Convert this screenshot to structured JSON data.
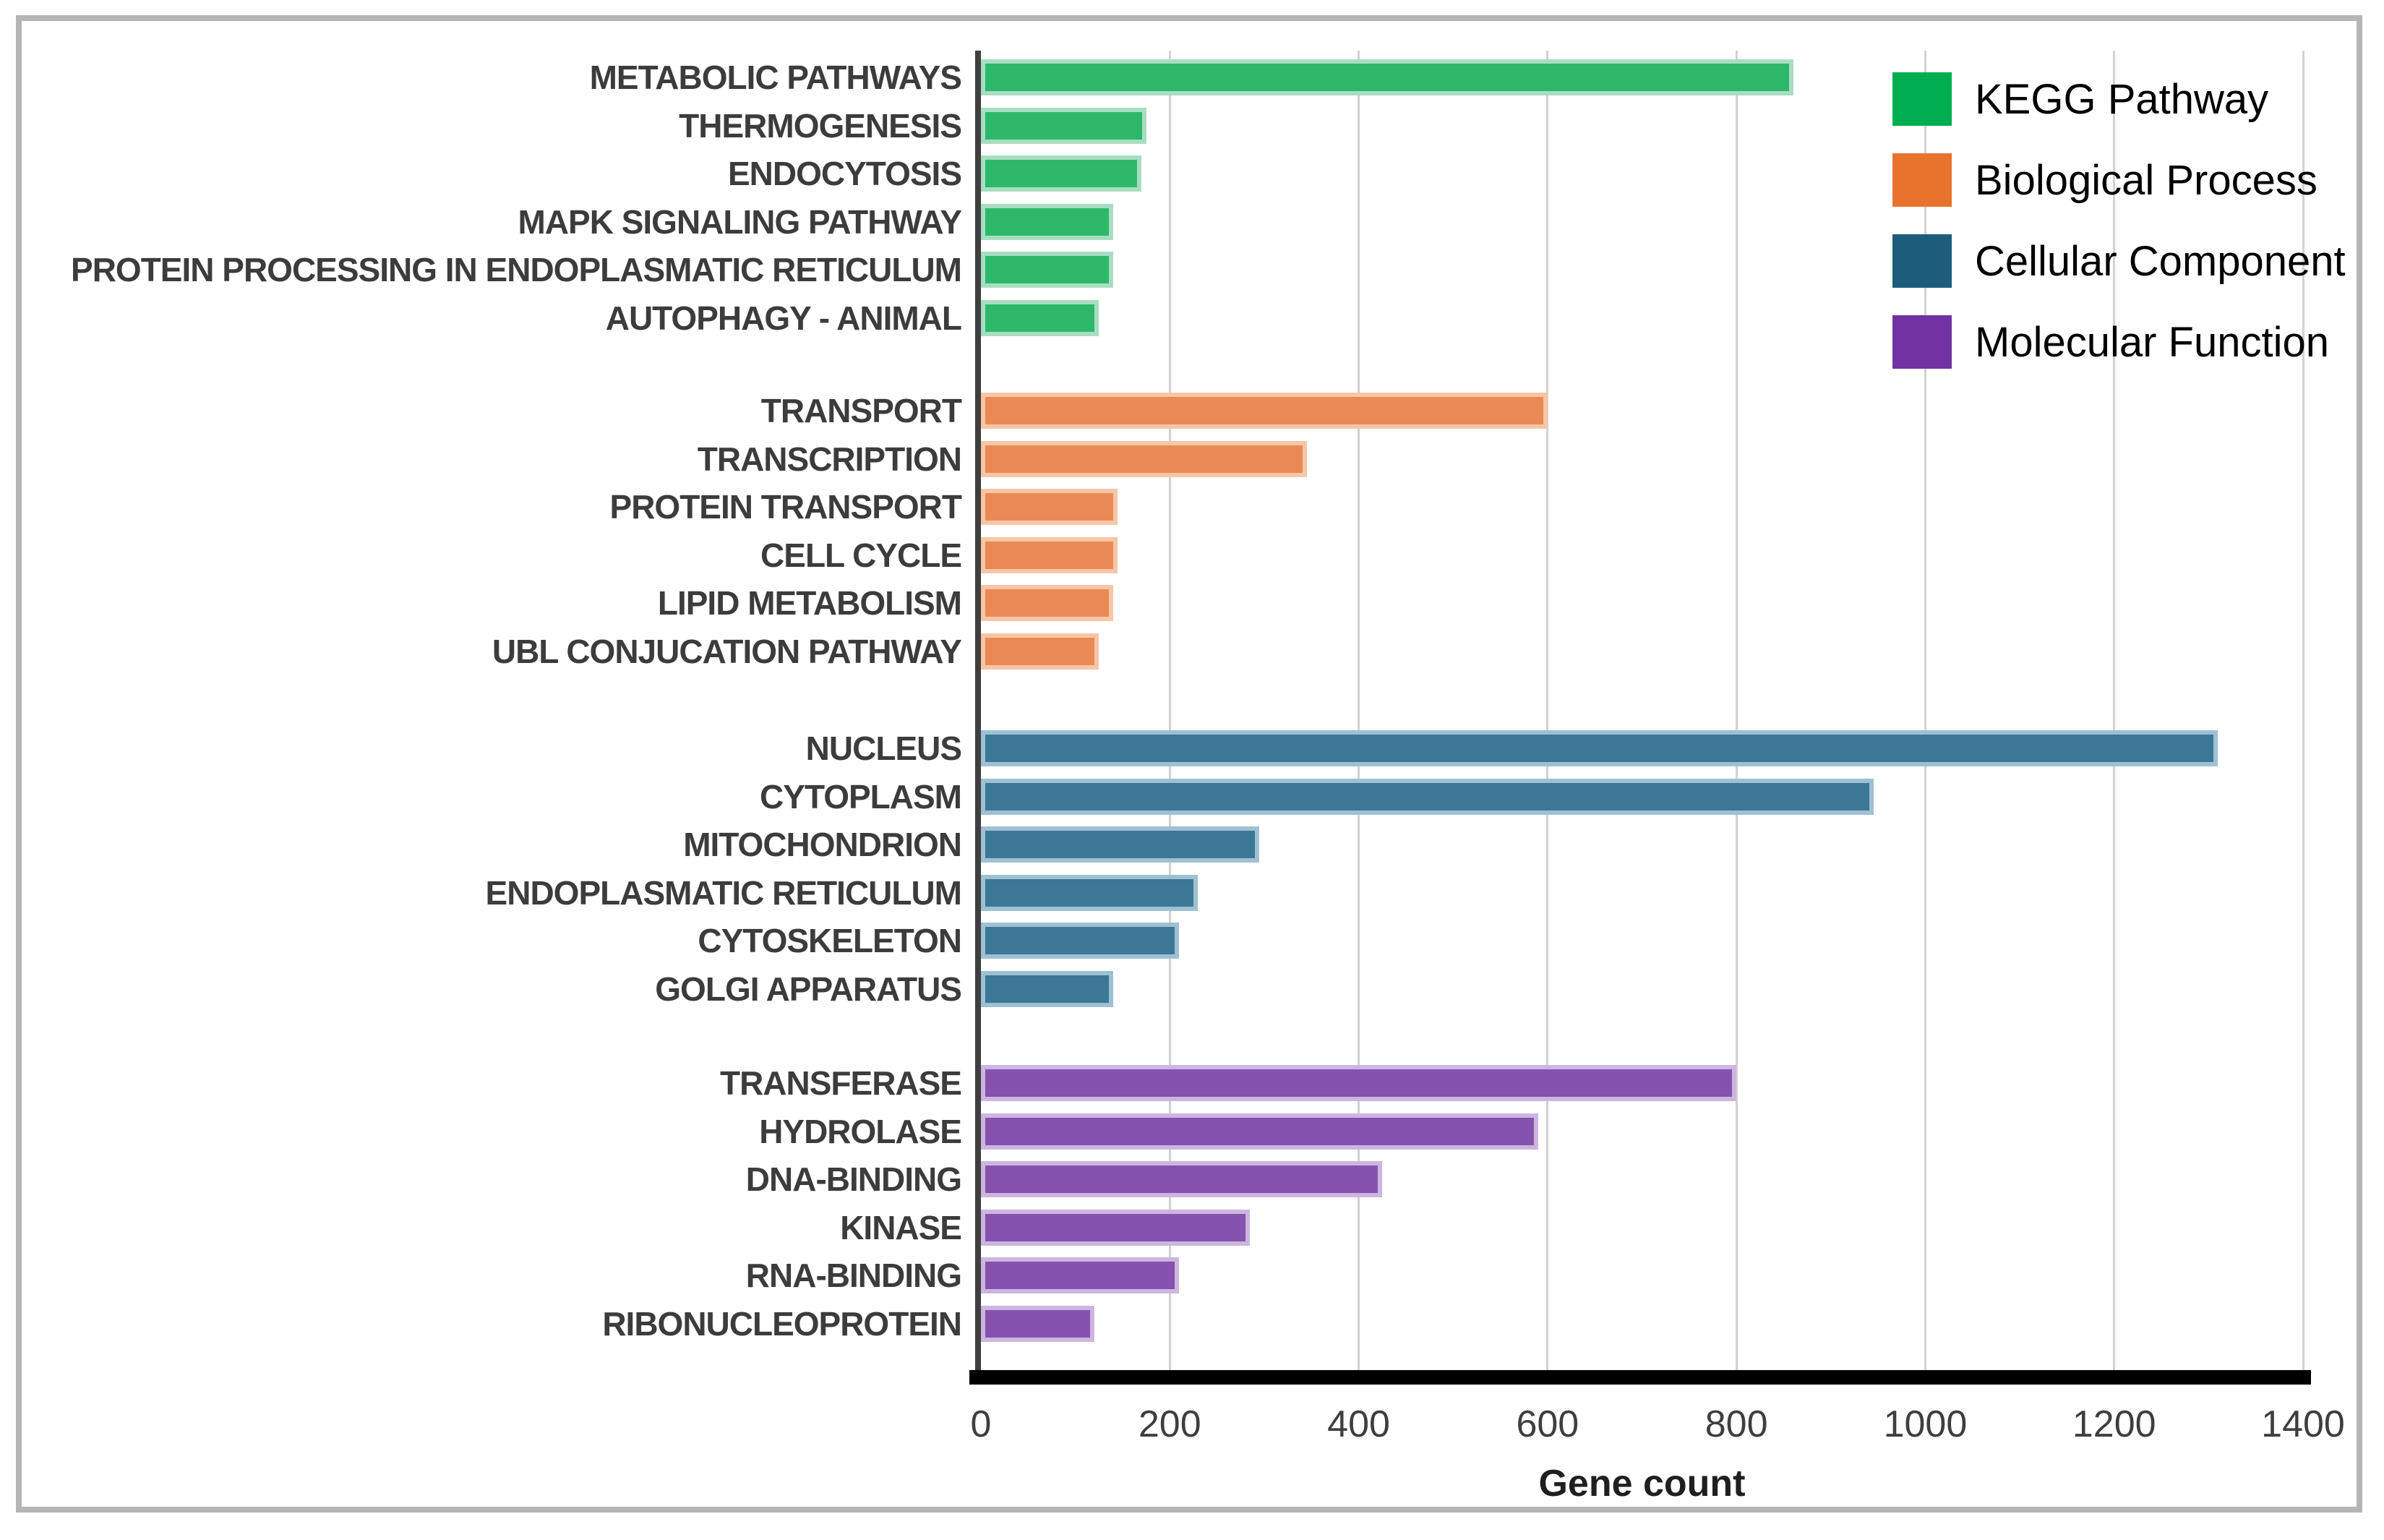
{
  "chart_data": {
    "type": "bar",
    "orientation": "horizontal",
    "title": "",
    "xlabel": "Gene count",
    "ylabel": "",
    "xlim": [
      0,
      1400
    ],
    "xticks": [
      0,
      200,
      400,
      600,
      800,
      1000,
      1200,
      1400
    ],
    "grid": "vertical",
    "legend_position": "top-right",
    "groups": [
      {
        "name": "KEGG Pathway",
        "bar_color": "#2db869",
        "bar_border_color": "#a9ddc1",
        "items": [
          {
            "label": "METABOLIC PATHWAYS",
            "value": 860
          },
          {
            "label": "THERMOGENESIS",
            "value": 175
          },
          {
            "label": "ENDOCYTOSIS",
            "value": 170
          },
          {
            "label": "MAPK SIGNALING PATHWAY",
            "value": 140
          },
          {
            "label": "PROTEIN PROCESSING IN ENDOPLASMATIC RETICULUM",
            "value": 140
          },
          {
            "label": "AUTOPHAGY - ANIMAL",
            "value": 125
          }
        ]
      },
      {
        "name": "Biological Process",
        "bar_color": "#e98a55",
        "bar_border_color": "#f6c6a7",
        "items": [
          {
            "label": "TRANSPORT",
            "value": 600
          },
          {
            "label": "TRANSCRIPTION",
            "value": 345
          },
          {
            "label": "PROTEIN TRANSPORT",
            "value": 145
          },
          {
            "label": "CELL CYCLE",
            "value": 145
          },
          {
            "label": "LIPID METABOLISM",
            "value": 140
          },
          {
            "label": "UBL CONJUCATION PATHWAY",
            "value": 125
          }
        ]
      },
      {
        "name": "Cellular Component",
        "bar_color": "#3a7896",
        "bar_border_color": "#9fc0d2",
        "items": [
          {
            "label": "NUCLEUS",
            "value": 1310
          },
          {
            "label": "CYTOPLASM",
            "value": 945
          },
          {
            "label": "MITOCHONDRION",
            "value": 295
          },
          {
            "label": "ENDOPLASMATIC RETICULUM",
            "value": 230
          },
          {
            "label": "CYTOSKELETON",
            "value": 210
          },
          {
            "label": "GOLGI APPARATUS",
            "value": 140
          }
        ]
      },
      {
        "name": "Molecular Function",
        "bar_color": "#8552ad",
        "bar_border_color": "#cdb5e0",
        "items": [
          {
            "label": "TRANSFERASE",
            "value": 800
          },
          {
            "label": "HYDROLASE",
            "value": 590
          },
          {
            "label": "DNA-BINDING",
            "value": 425
          },
          {
            "label": "KINASE",
            "value": 285
          },
          {
            "label": "RNA-BINDING",
            "value": 210
          },
          {
            "label": "RIBONUCLEOPROTEIN",
            "value": 120
          }
        ]
      }
    ],
    "legend": [
      {
        "label": "KEGG Pathway",
        "color": "#00ae50"
      },
      {
        "label": "Biological Process",
        "color": "#e9732d"
      },
      {
        "label": "Cellular Component",
        "color": "#1d5d7b"
      },
      {
        "label": "Molecular Function",
        "color": "#7133a2"
      }
    ]
  }
}
